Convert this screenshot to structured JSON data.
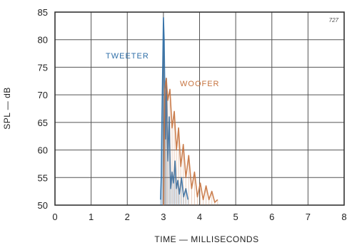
{
  "chart_data": {
    "type": "line",
    "title": "",
    "xlabel": "TIME — MILLISECONDS",
    "ylabel": "SPL — dB",
    "xlim": [
      0,
      8
    ],
    "ylim": [
      50,
      85
    ],
    "grid": true,
    "x_ticks": [
      "0",
      "1",
      "2",
      "3",
      "4",
      "5",
      "6",
      "7",
      "8"
    ],
    "y_ticks": [
      "50",
      "55",
      "60",
      "65",
      "70",
      "75",
      "80",
      "85"
    ],
    "series": [
      {
        "name": "TWEETER",
        "color": "#2f6fa8",
        "x": [
          2.92,
          2.94,
          2.96,
          2.98,
          3.0,
          3.02,
          3.04,
          3.06,
          3.08,
          3.12,
          3.16,
          3.2,
          3.24,
          3.28,
          3.32,
          3.36,
          3.4,
          3.44,
          3.5,
          3.56,
          3.62,
          3.68
        ],
        "y": [
          51,
          55,
          66,
          75,
          84,
          80,
          70,
          62,
          73,
          58,
          66,
          53,
          56,
          54,
          58,
          53,
          54.5,
          52,
          55,
          51.5,
          53,
          51
        ]
      },
      {
        "name": "WOOFER",
        "color": "#c6733f",
        "x": [
          3.0,
          3.04,
          3.08,
          3.12,
          3.18,
          3.24,
          3.3,
          3.36,
          3.42,
          3.48,
          3.55,
          3.62,
          3.7,
          3.78,
          3.86,
          3.94,
          4.02,
          4.1,
          4.18,
          4.26,
          4.34,
          4.42,
          4.5
        ],
        "y": [
          50,
          71,
          73,
          69,
          71,
          64,
          67,
          60,
          64,
          57,
          61,
          55,
          59,
          53,
          56,
          51.5,
          54,
          51,
          53.5,
          51,
          52.5,
          50.5,
          51
        ]
      }
    ],
    "annotations": [
      "TWEETER",
      "WOOFER"
    ]
  },
  "corner_mark": "727"
}
